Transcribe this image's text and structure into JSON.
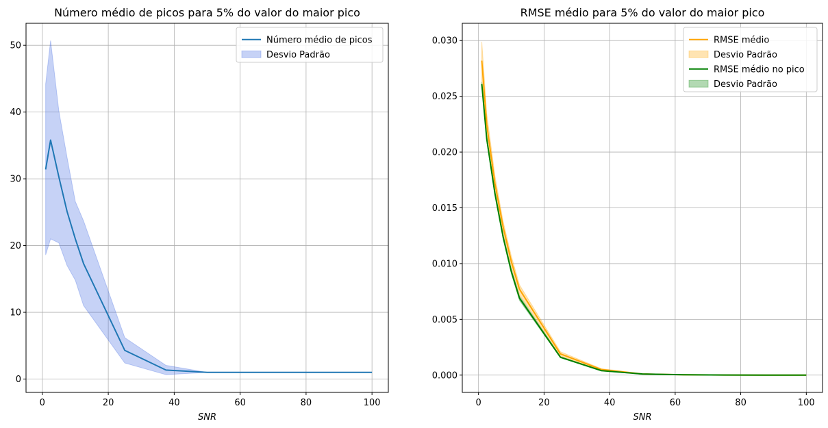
{
  "chart_data": [
    {
      "type": "line",
      "title": "Número médio de picos para 5% do valor do maior pico",
      "xlabel": "SNR",
      "ylabel": "",
      "xlim": [
        -4.95,
        104.95
      ],
      "ylim": [
        -2,
        53.3
      ],
      "xticks": [
        0,
        20,
        40,
        60,
        80,
        100
      ],
      "yticks": [
        0,
        10,
        20,
        30,
        40,
        50
      ],
      "x_tick_labels": [
        "0",
        "20",
        "40",
        "60",
        "80",
        "100"
      ],
      "y_tick_labels": [
        "0",
        "10",
        "20",
        "30",
        "40",
        "50"
      ],
      "grid": true,
      "legend_position": "upper right",
      "x": [
        1,
        2.5,
        5,
        7.5,
        10,
        12.5,
        25,
        37.5,
        50,
        62.5,
        75,
        87.5,
        100
      ],
      "series": [
        {
          "name": "Número médio de picos",
          "kind": "line",
          "color": "#1f77b4",
          "values": [
            31.4,
            35.8,
            30.3,
            25.1,
            21.0,
            17.3,
            4.3,
            1.35,
            1.0,
            1.0,
            1.0,
            1.0,
            1.0
          ]
        },
        {
          "name": "Desvio Padrão",
          "kind": "band",
          "color": "#4169e1",
          "lower": [
            18.6,
            21.0,
            20.4,
            17.0,
            14.8,
            11.0,
            2.4,
            0.65,
            1.0,
            1.0,
            1.0,
            1.0,
            1.0
          ],
          "upper": [
            44.2,
            50.7,
            40.2,
            33.2,
            26.6,
            23.7,
            6.2,
            2.05,
            1.0,
            1.0,
            1.0,
            1.0,
            1.0
          ]
        }
      ]
    },
    {
      "type": "line",
      "title": "RMSE médio para 5% do valor do maior pico",
      "xlabel": "SNR",
      "ylabel": "",
      "xlim": [
        -4.95,
        104.95
      ],
      "ylim": [
        -0.00155,
        0.03155
      ],
      "xticks": [
        0,
        20,
        40,
        60,
        80,
        100
      ],
      "yticks": [
        0,
        0.005,
        0.01,
        0.015,
        0.02,
        0.025,
        0.03
      ],
      "x_tick_labels": [
        "0",
        "20",
        "40",
        "60",
        "80",
        "100"
      ],
      "y_tick_labels": [
        "0.000",
        "0.005",
        "0.010",
        "0.015",
        "0.020",
        "0.025",
        "0.030"
      ],
      "grid": true,
      "legend_position": "upper right",
      "x": [
        1,
        2.5,
        5,
        7.5,
        10,
        12.5,
        25,
        37.5,
        50,
        62.5,
        75,
        87.5,
        100
      ],
      "series": [
        {
          "name": "RMSE médio",
          "kind": "line",
          "color": "#ffa500",
          "values": [
            0.0282,
            0.0225,
            0.0172,
            0.0133,
            0.0102,
            0.0077,
            0.0019,
            0.0005,
            0.0001,
            3e-05,
            1e-05,
            0.0,
            0.0
          ]
        },
        {
          "name": "Desvio Padrão",
          "kind": "band",
          "color": "#ffa500",
          "lower": [
            0.0265,
            0.0215,
            0.0165,
            0.0128,
            0.0097,
            0.0072,
            0.0017,
            0.00042,
            8e-05,
            2e-05,
            0.0,
            0.0,
            0.0
          ],
          "upper": [
            0.0299,
            0.0235,
            0.0179,
            0.0138,
            0.0107,
            0.0081,
            0.0021,
            0.00058,
            0.00012,
            4e-05,
            2e-05,
            0.0,
            0.0
          ]
        },
        {
          "name": "RMSE médio no pico",
          "kind": "line",
          "color": "#008000",
          "values": [
            0.0261,
            0.0212,
            0.0163,
            0.0124,
            0.0093,
            0.0069,
            0.0016,
            0.0004,
            0.0001,
            3e-05,
            1e-05,
            0.0,
            0.0
          ]
        },
        {
          "name": "Desvio Padrão",
          "kind": "band",
          "color": "#008000",
          "lower": [
            0.0259,
            0.021,
            0.0161,
            0.0122,
            0.0091,
            0.0067,
            0.00155,
            0.00037,
            8e-05,
            2e-05,
            0.0,
            0.0,
            0.0
          ],
          "upper": [
            0.0263,
            0.0214,
            0.0165,
            0.0126,
            0.0095,
            0.0071,
            0.00165,
            0.00043,
            0.00012,
            4e-05,
            2e-05,
            0.0,
            0.0
          ]
        }
      ]
    }
  ]
}
